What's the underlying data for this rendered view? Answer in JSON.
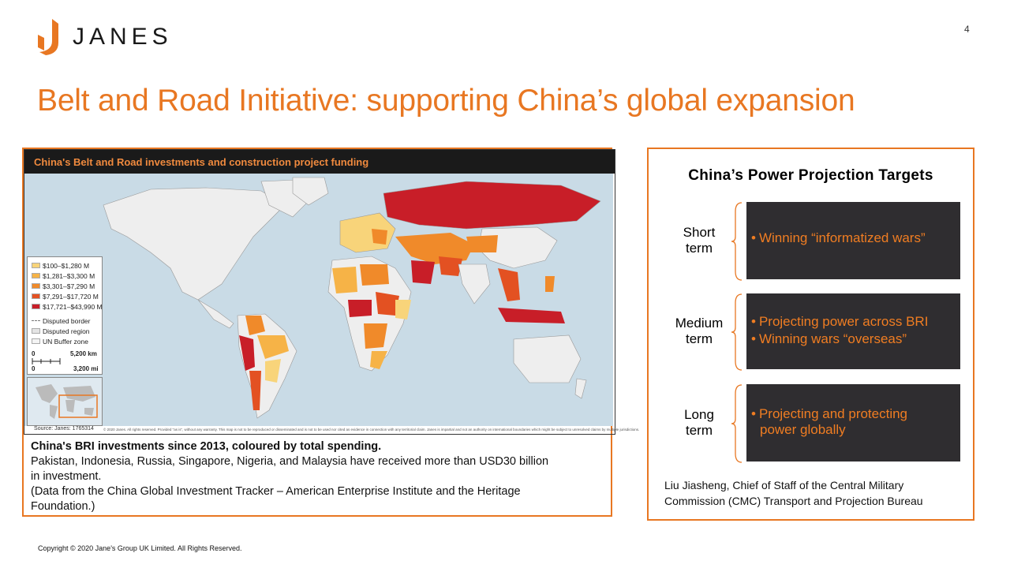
{
  "brand": {
    "name": "JANES",
    "accent": "#e87722",
    "icon": "janes-logo-mark"
  },
  "page_number": "4",
  "title": "Belt and Road Initiative: supporting China’s global expansion",
  "map": {
    "header": "China's Belt and Road investments and construction project funding",
    "legend": [
      {
        "label": "$100–$1,280 M",
        "color": "#f8d47a"
      },
      {
        "label": "$1,281–$3,300 M",
        "color": "#f6b347"
      },
      {
        "label": "$3,301–$7,290 M",
        "color": "#f08a2a"
      },
      {
        "label": "$7,291–$17,720 M",
        "color": "#e35122"
      },
      {
        "label": "$17,721–$43,990 M",
        "color": "#c81e28"
      }
    ],
    "boundary_legend": [
      "Disputed border",
      "Disputed region",
      "UN Buffer zone"
    ],
    "scale": {
      "zero_a": "0",
      "km": "5,200 km",
      "zero_b": "0",
      "mi": "3,200 mi"
    },
    "source": "Source: Janes: 1765314",
    "footnote": "© 2020 Janes. All rights reserved. Provided \"as is\", without any warranty. This map is not to be reproduced or disseminated and is not to be used nor cited as evidence in connection with any territorial claim. Janes is impartial and not an authority on international boundaries which might be subject to unresolved claims by multiple jurisdictions."
  },
  "caption": {
    "heading": "China's BRI investments since 2013, coloured by total spending.",
    "line1": "Pakistan, Indonesia, Russia, Singapore, Nigeria, and Malaysia have received more than  USD30 billion",
    "line2": "in investment.",
    "line3": "(Data from the China Global Investment  Tracker – American Enterprise Institute  and the Heritage",
    "line4": "Foundation.)"
  },
  "targets": {
    "title": "China’s Power Projection  Targets",
    "rows": [
      {
        "term_line1": "Short",
        "term_line2": "term",
        "bullets": [
          "Winning “informatized wars”"
        ]
      },
      {
        "term_line1": "Medium",
        "term_line2": "term",
        "bullets": [
          "Projecting power across BRI",
          "Winning wars “overseas”"
        ]
      },
      {
        "term_line1": "Long",
        "term_line2": "term",
        "bullets": [
          "Projecting and protecting",
          "power globally"
        ]
      }
    ],
    "bullet_char": "•",
    "attribution_line1": "Liu Jiasheng, Chief of Staff of the Central Military",
    "attribution_line2": "Commission (CMC) Transport  and Projection Bureau"
  },
  "copyright": "Copyright © 2020 Jane's Group UK Limited. All Rights Reserved."
}
